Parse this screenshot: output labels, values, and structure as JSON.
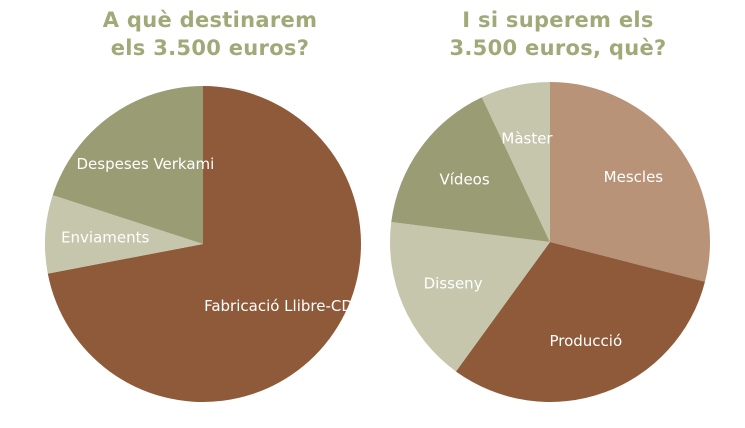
{
  "chart_data": [
    {
      "type": "pie",
      "title_lines": [
        "A què destinarem",
        "els 3.500 euros?"
      ],
      "slices": [
        {
          "label": "Fabricació Llibre-CD",
          "value": 72,
          "color": "#8e5a3a"
        },
        {
          "label": "Enviaments",
          "value": 8,
          "color": "#c5c6ac"
        },
        {
          "label": "Despeses Verkami",
          "value": 20,
          "color": "#9a9c74"
        }
      ]
    },
    {
      "type": "pie",
      "title_lines": [
        "I si superem els",
        "3.500 euros, què?"
      ],
      "slices": [
        {
          "label": "Mescles",
          "value": 29,
          "color": "#b99378"
        },
        {
          "label": "Producció",
          "value": 31,
          "color": "#8e5a3a"
        },
        {
          "label": "Disseny",
          "value": 17,
          "color": "#c5c6ac"
        },
        {
          "label": "Vídeos",
          "value": 16,
          "color": "#9a9c74"
        },
        {
          "label": "Màster",
          "value": 7,
          "color": "#c5c6ac"
        }
      ]
    }
  ],
  "colors": {
    "title": "#a0a978",
    "label_text": "#ffffff"
  }
}
